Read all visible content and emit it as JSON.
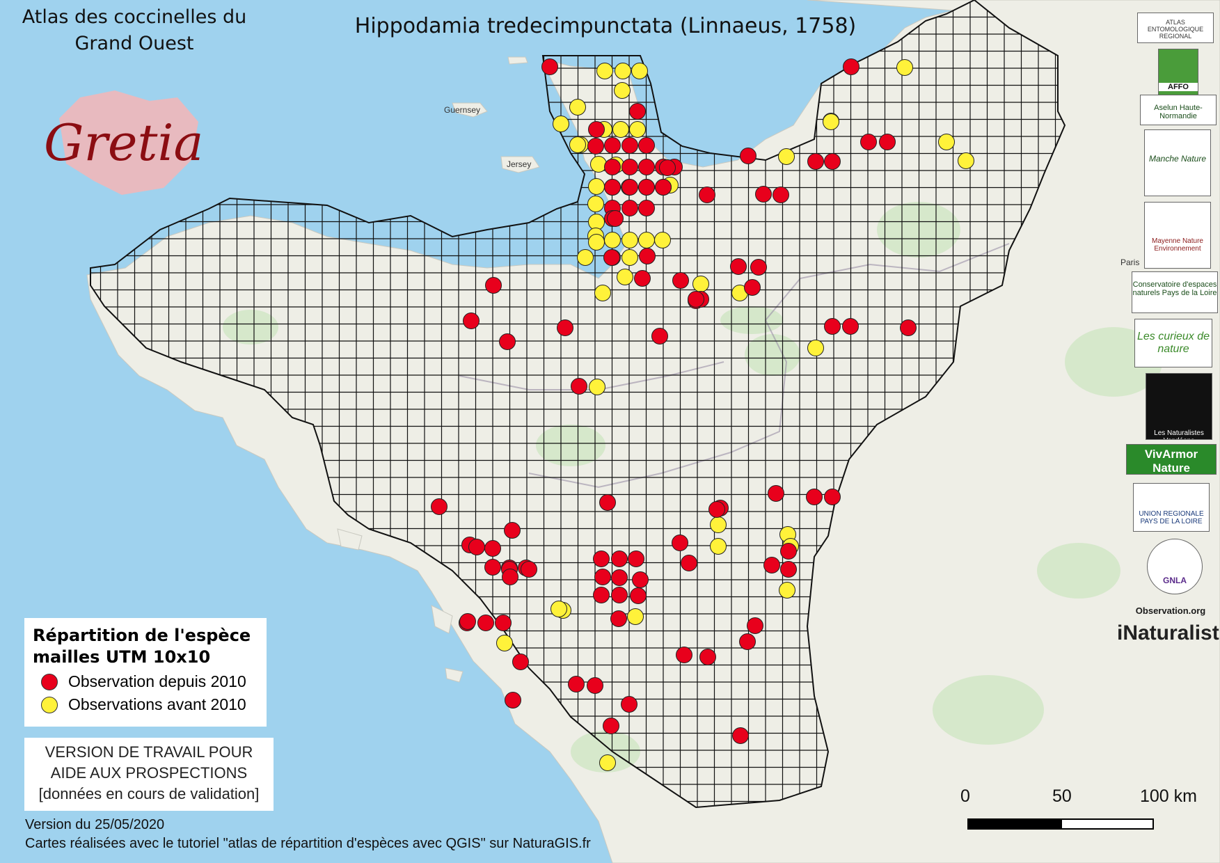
{
  "atlas_title": [
    "Atlas des coccinelles du",
    "Grand Ouest"
  ],
  "species_title": "Hippodamia tredecimpunctata (Linnaeus, 1758)",
  "logo_text": "Gretia",
  "legend": {
    "title_line1": "Répartition de l'espèce",
    "title_line2": "mailles UTM 10x10",
    "items": [
      {
        "label": "Observation depuis 2010",
        "color": "#e8001c"
      },
      {
        "label": "Observations avant 2010",
        "color": "#fff23a"
      }
    ]
  },
  "work_box": [
    "VERSION DE TRAVAIL POUR",
    "AIDE AUX PROSPECTIONS",
    "[données en cours de validation]"
  ],
  "footer": {
    "version": "Version du 25/05/2020",
    "credit": "Cartes réalisées avec le tutoriel \"atlas de répartition d'espèces avec QGIS\" sur NaturaGIS.fr"
  },
  "scalebar": {
    "labels": [
      "0",
      "50",
      "100 km"
    ]
  },
  "map_labels": {
    "guernsey": "Guernsey",
    "jersey": "Jersey",
    "paris": "Paris"
  },
  "partners": [
    {
      "name": "ATLAS ENTOMOLOGIQUE REGIONAL"
    },
    {
      "name": "AFFO"
    },
    {
      "name": "Aselun Haute-Normandie"
    },
    {
      "name": "Manche Nature"
    },
    {
      "name": "Mayenne Nature Environnement"
    },
    {
      "name": "Conservatoire d'espaces naturels Pays de la Loire"
    },
    {
      "name": "Les curieux de nature"
    },
    {
      "name": "Les Naturalistes Vendéens"
    },
    {
      "name": "VivArmor Nature"
    },
    {
      "name": "UNION REGIONALE PAYS DE LA LOIRE"
    },
    {
      "name": "GNLA"
    },
    {
      "name": "Observation.org"
    }
  ],
  "inaturalist": "iNaturalist",
  "colors": {
    "sea": "#9fd2ee",
    "land": "#eeeee6",
    "recent": "#e8001c",
    "old": "#fff23a"
  },
  "observations": {
    "recent": [
      [
        790,
        96
      ],
      [
        916,
        160
      ],
      [
        857,
        186
      ],
      [
        880,
        209
      ],
      [
        905,
        209
      ],
      [
        929,
        209
      ],
      [
        1075,
        224
      ],
      [
        1172,
        232
      ],
      [
        1196,
        232
      ],
      [
        1223,
        96
      ],
      [
        1248,
        204
      ],
      [
        1275,
        204
      ],
      [
        1016,
        280
      ],
      [
        1097,
        279
      ],
      [
        1122,
        280
      ],
      [
        1090,
        384
      ],
      [
        1061,
        383
      ],
      [
        1081,
        413
      ],
      [
        1000,
        432
      ],
      [
        856,
        210
      ],
      [
        880,
        240
      ],
      [
        905,
        240
      ],
      [
        929,
        240
      ],
      [
        953,
        240
      ],
      [
        880,
        269
      ],
      [
        905,
        269
      ],
      [
        929,
        269
      ],
      [
        953,
        269
      ],
      [
        929,
        299
      ],
      [
        905,
        299
      ],
      [
        880,
        299
      ],
      [
        880,
        314
      ],
      [
        969,
        240
      ],
      [
        959,
        241
      ],
      [
        884,
        314
      ],
      [
        930,
        368
      ],
      [
        879,
        370
      ],
      [
        923,
        400
      ],
      [
        978,
        403
      ],
      [
        1007,
        430
      ],
      [
        1000,
        430
      ],
      [
        1196,
        469
      ],
      [
        1222,
        469
      ],
      [
        1305,
        471
      ],
      [
        709,
        410
      ],
      [
        677,
        461
      ],
      [
        729,
        491
      ],
      [
        812,
        471
      ],
      [
        948,
        483
      ],
      [
        832,
        555
      ],
      [
        1115,
        709
      ],
      [
        1170,
        714
      ],
      [
        1196,
        714
      ],
      [
        1035,
        730
      ],
      [
        631,
        728
      ],
      [
        736,
        762
      ],
      [
        873,
        722
      ],
      [
        977,
        780
      ],
      [
        1030,
        732
      ],
      [
        1133,
        792
      ],
      [
        1109,
        812
      ],
      [
        675,
        783
      ],
      [
        685,
        786
      ],
      [
        708,
        788
      ],
      [
        708,
        815
      ],
      [
        732,
        816
      ],
      [
        756,
        816
      ],
      [
        760,
        818
      ],
      [
        864,
        803
      ],
      [
        890,
        803
      ],
      [
        914,
        803
      ],
      [
        920,
        833
      ],
      [
        890,
        830
      ],
      [
        866,
        829
      ],
      [
        864,
        855
      ],
      [
        890,
        855
      ],
      [
        917,
        856
      ],
      [
        732,
        818
      ],
      [
        733,
        829
      ],
      [
        990,
        809
      ],
      [
        1133,
        818
      ],
      [
        1074,
        922
      ],
      [
        889,
        889
      ],
      [
        671,
        895
      ],
      [
        698,
        895
      ],
      [
        723,
        895
      ],
      [
        672,
        893
      ],
      [
        748,
        951
      ],
      [
        983,
        941
      ],
      [
        1017,
        944
      ],
      [
        828,
        983
      ],
      [
        855,
        985
      ],
      [
        1085,
        899
      ],
      [
        904,
        1012
      ],
      [
        878,
        1043
      ],
      [
        1064,
        1057
      ],
      [
        737,
        1006
      ]
    ],
    "old": [
      [
        895,
        102
      ],
      [
        919,
        102
      ],
      [
        894,
        130
      ],
      [
        869,
        102
      ],
      [
        806,
        178
      ],
      [
        830,
        154
      ],
      [
        868,
        186
      ],
      [
        892,
        186
      ],
      [
        916,
        186
      ],
      [
        834,
        208
      ],
      [
        830,
        208
      ],
      [
        860,
        236
      ],
      [
        963,
        266
      ],
      [
        885,
        237
      ],
      [
        857,
        268
      ],
      [
        856,
        293
      ],
      [
        880,
        269
      ],
      [
        904,
        269
      ],
      [
        929,
        269
      ],
      [
        953,
        269
      ],
      [
        857,
        319
      ],
      [
        856,
        339
      ],
      [
        857,
        348
      ],
      [
        880,
        370
      ],
      [
        905,
        370
      ],
      [
        929,
        345
      ],
      [
        952,
        345
      ],
      [
        905,
        345
      ],
      [
        880,
        345
      ],
      [
        841,
        370
      ],
      [
        1300,
        97
      ],
      [
        1194,
        174
      ],
      [
        1194,
        175
      ],
      [
        1130,
        225
      ],
      [
        1360,
        204
      ],
      [
        1388,
        231
      ],
      [
        1007,
        408
      ],
      [
        1063,
        421
      ],
      [
        866,
        421
      ],
      [
        898,
        398
      ],
      [
        1172,
        500
      ],
      [
        858,
        556
      ],
      [
        1132,
        768
      ],
      [
        1032,
        754
      ],
      [
        1032,
        785
      ],
      [
        809,
        877
      ],
      [
        803,
        875
      ],
      [
        725,
        924
      ],
      [
        1136,
        785
      ],
      [
        913,
        886
      ],
      [
        1131,
        848
      ],
      [
        873,
        1096
      ]
    ]
  }
}
